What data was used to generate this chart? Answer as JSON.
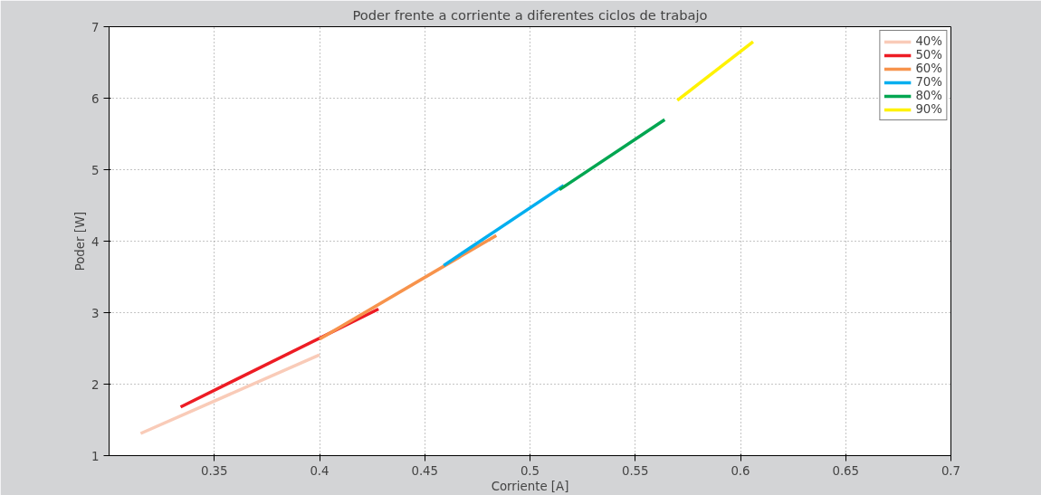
{
  "chart_data": {
    "type": "line",
    "title": "Poder frente a corriente a diferentes ciclos de trabajo",
    "xlabel": "Corriente [A]",
    "ylabel": "Poder [W]",
    "xlim": [
      0.3,
      0.7
    ],
    "xticks": [
      0.35,
      0.4,
      0.45,
      0.5,
      0.55,
      0.6,
      0.65,
      0.7
    ],
    "ylim": [
      1,
      7
    ],
    "yticks": [
      1,
      2,
      3,
      4,
      5,
      6,
      7
    ],
    "grid": true,
    "legend": "top right",
    "marker": "none",
    "line_style": "solid",
    "series": [
      {
        "name": "40%",
        "color": "#f9cbb8",
        "x": [
          0.315,
          0.4
        ],
        "values": [
          1.31,
          2.41
        ]
      },
      {
        "name": "50%",
        "color": "#ed1c24",
        "x": [
          0.334,
          0.428
        ],
        "values": [
          1.68,
          3.05
        ]
      },
      {
        "name": "60%",
        "color": "#f7934c",
        "x": [
          0.4,
          0.484
        ],
        "values": [
          2.63,
          4.08
        ]
      },
      {
        "name": "70%",
        "color": "#00aeef",
        "x": [
          0.459,
          0.516
        ],
        "values": [
          3.66,
          4.78
        ]
      },
      {
        "name": "80%",
        "color": "#00a651",
        "x": [
          0.514,
          0.564
        ],
        "values": [
          4.72,
          5.7
        ]
      },
      {
        "name": "90%",
        "color": "#fff200",
        "x": [
          0.57,
          0.606
        ],
        "values": [
          5.97,
          6.79
        ]
      }
    ]
  }
}
